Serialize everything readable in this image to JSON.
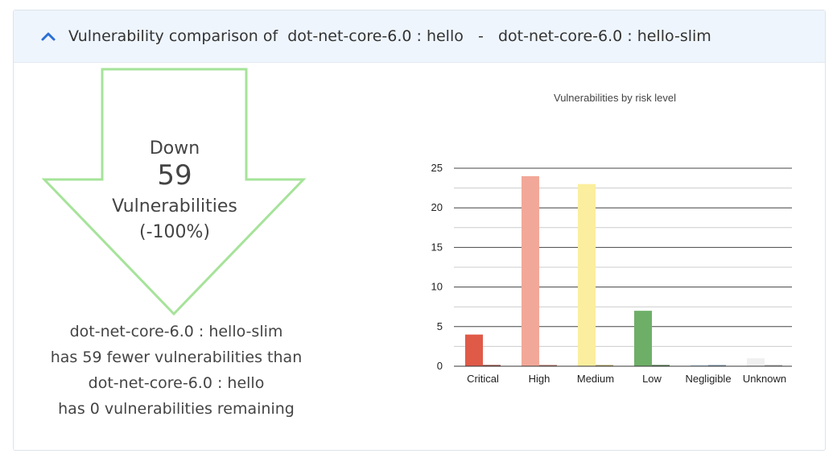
{
  "header": {
    "title": "Vulnerability comparison of  dot-net-core-6.0 : hello   -   dot-net-core-6.0 : hello-slim",
    "expand_icon": "chevron-up-icon",
    "accent": "#2b6fd6"
  },
  "arrow": {
    "direction_label": "Down",
    "count": "59",
    "unit_label": "Vulnerabilities",
    "percent_label": "(-100%)",
    "color": "#a6e39a"
  },
  "summary": {
    "line1": "dot-net-core-6.0 : hello-slim",
    "line2": "has 59 fewer vulnerabilities than",
    "line3": "dot-net-core-6.0 : hello",
    "line4": "has 0 vulnerabilities remaining"
  },
  "chart_data": {
    "type": "bar",
    "title": "Vulnerabilities by risk level",
    "categories": [
      "Critical",
      "High",
      "Medium",
      "Low",
      "Negligible",
      "Unknown"
    ],
    "series": [
      {
        "values": [
          4,
          24,
          23,
          7,
          0,
          1
        ],
        "colors": [
          "#e05a48",
          "#f2a898",
          "#fbee9e",
          "#6eaf68",
          "#bcd4e8",
          "#f0f0f0"
        ]
      },
      {
        "values": [
          0,
          0,
          0,
          0,
          0,
          0
        ],
        "colors": [
          "#8b3a2e",
          "#a8685c",
          "#a89a58",
          "#3f6b3b",
          "#7a93a8",
          "#aaaaaa"
        ]
      }
    ],
    "ylim": [
      0,
      25
    ],
    "yticks": [
      0,
      5,
      10,
      15,
      20,
      25
    ],
    "grid": true,
    "legend": "none",
    "xlabel": "",
    "ylabel": ""
  }
}
